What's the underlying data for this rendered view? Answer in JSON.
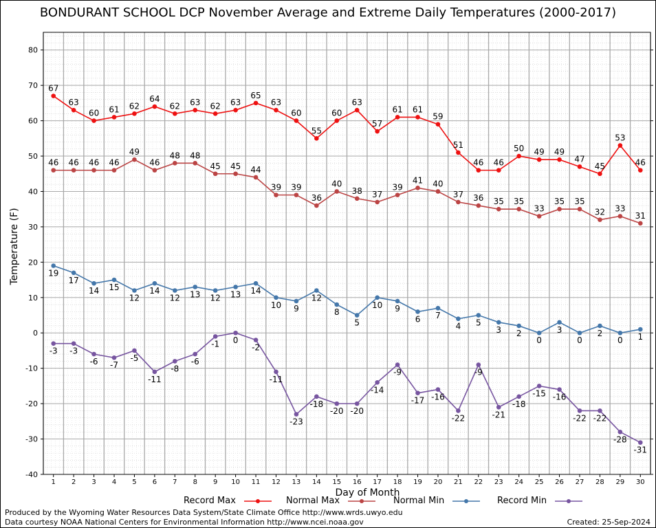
{
  "chart_data": {
    "type": "line",
    "title": "BONDURANT SCHOOL DCP November Average and Extreme Daily Temperatures (2000-2017)",
    "xlabel": "Day of Month",
    "ylabel": "Temperature (F)",
    "ylim": [
      -40,
      85
    ],
    "xlim": [
      0.5,
      30.5
    ],
    "grid": true,
    "legend_position": "bottom",
    "categories": [
      1,
      2,
      3,
      4,
      5,
      6,
      7,
      8,
      9,
      10,
      11,
      12,
      13,
      14,
      15,
      16,
      17,
      18,
      19,
      20,
      21,
      22,
      23,
      24,
      25,
      26,
      27,
      28,
      29,
      30
    ],
    "y_ticks": [
      80,
      70,
      60,
      50,
      40,
      30,
      20,
      10,
      0,
      -10,
      -20,
      -30,
      -40
    ],
    "series": [
      {
        "name": "Record Max",
        "color": "#ee1111",
        "values": [
          67,
          63,
          60,
          61,
          62,
          64,
          62,
          63,
          62,
          63,
          65,
          63,
          60,
          55,
          60,
          63,
          57,
          61,
          61,
          59,
          51,
          46,
          46,
          50,
          49,
          49,
          47,
          45,
          53,
          46
        ]
      },
      {
        "name": "Normal Max",
        "color": "#bb4444",
        "values": [
          46,
          46,
          46,
          46,
          49,
          46,
          48,
          48,
          45,
          45,
          44,
          39,
          39,
          36,
          40,
          38,
          37,
          39,
          41,
          40,
          37,
          36,
          35,
          35,
          33,
          35,
          35,
          32,
          33,
          31
        ]
      },
      {
        "name": "Normal Min",
        "color": "#4477aa",
        "values": [
          19,
          17,
          14,
          15,
          12,
          14,
          12,
          13,
          12,
          13,
          14,
          10,
          9,
          12,
          8,
          5,
          10,
          9,
          6,
          7,
          4,
          5,
          3,
          2,
          0,
          3,
          0,
          2,
          0,
          1
        ]
      },
      {
        "name": "Record Min",
        "color": "#7755a0",
        "values": [
          -3,
          -3,
          -6,
          -7,
          -5,
          -11,
          -8,
          -6,
          -1,
          0,
          -2,
          -11,
          -23,
          -18,
          -20,
          -20,
          -14,
          -9,
          -17,
          -16,
          -22,
          -9,
          -21,
          -18,
          -15,
          -16,
          -22,
          -22,
          -28,
          -31
        ]
      }
    ]
  },
  "footer": {
    "credit_line1": "Produced by the Wyoming Water Resources Data System/State Climate Office http://www.wrds.uwyo.edu",
    "credit_line2": "Data courtesy NOAA National Centers for Environmental Information http://www.ncei.noaa.gov",
    "created": "Created: 25-Sep-2024"
  }
}
